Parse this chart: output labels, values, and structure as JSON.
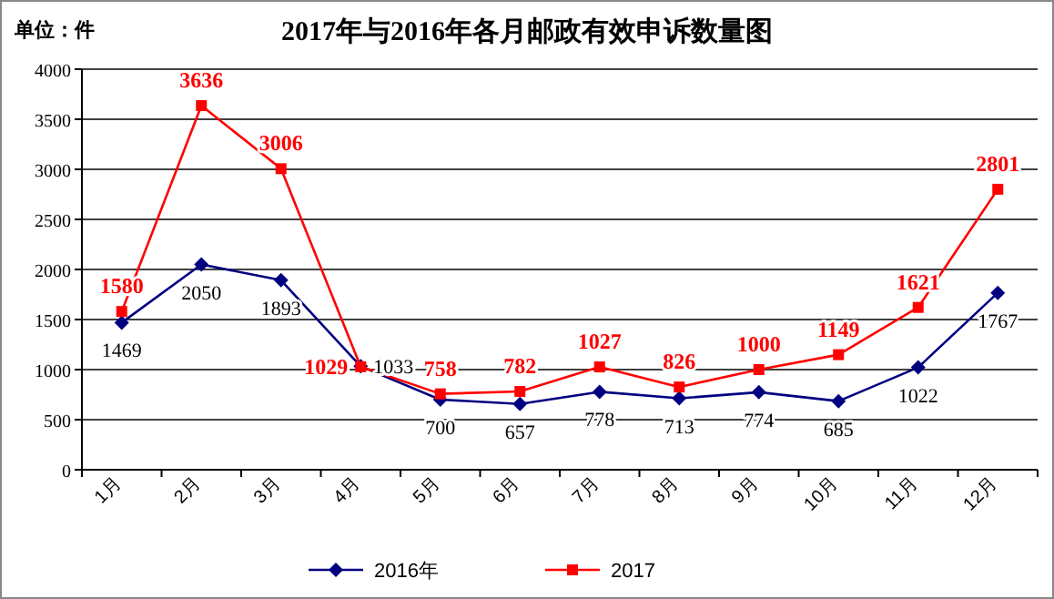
{
  "chart_data": {
    "type": "line",
    "title": "2017年与2016年各月邮政有效申诉数量图",
    "annotations": [
      "单位：件"
    ],
    "categories": [
      "1月",
      "2月",
      "3月",
      "4月",
      "5月",
      "6月",
      "7月",
      "8月",
      "9月",
      "10月",
      "11月",
      "12月"
    ],
    "series": [
      {
        "name": "2016年",
        "color": "#000080",
        "marker": "diamond",
        "values": [
          1469,
          2050,
          1893,
          1033,
          700,
          657,
          778,
          713,
          774,
          685,
          1022,
          1767
        ]
      },
      {
        "name": "2017",
        "color": "#ff0000",
        "marker": "square",
        "values": [
          1580,
          3636,
          3006,
          1029,
          758,
          782,
          1027,
          826,
          1000,
          1149,
          1621,
          2801
        ]
      }
    ],
    "ylim": [
      0,
      4000
    ],
    "yticks": [
      0,
      500,
      1000,
      1500,
      2000,
      2500,
      3000,
      3500,
      4000
    ],
    "grid": "y",
    "legend": "bottom",
    "data_labels": true,
    "line_style": "solid"
  }
}
